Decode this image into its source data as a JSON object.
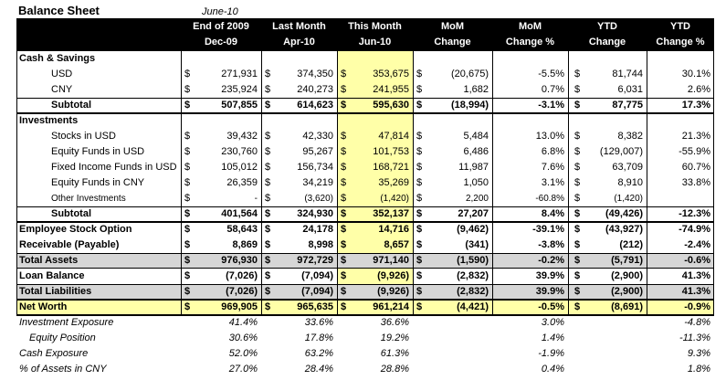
{
  "title": "Balance Sheet",
  "date": "June-10",
  "headers": [
    {
      "l1": "End of 2009",
      "l2": "Dec-09"
    },
    {
      "l1": "Last Month",
      "l2": "Apr-10"
    },
    {
      "l1": "This Month",
      "l2": "Jun-10"
    },
    {
      "l1": "MoM",
      "l2": "Change"
    },
    {
      "l1": "MoM",
      "l2": "Change %"
    },
    {
      "l1": "YTD",
      "l2": "Change"
    },
    {
      "l1": "YTD",
      "l2": "Change %"
    }
  ],
  "rows": [
    {
      "label": "Cash & Savings",
      "kind": "section"
    },
    {
      "label": "USD",
      "kind": "item",
      "v": [
        "271,931",
        "374,350",
        "353,675",
        "(20,675)",
        "-5.5%",
        "81,744",
        "30.1%"
      ],
      "d": [
        "$",
        "$",
        "$",
        "$",
        "",
        "$",
        ""
      ]
    },
    {
      "label": "CNY",
      "kind": "item",
      "v": [
        "235,924",
        "240,273",
        "241,955",
        "1,682",
        "0.7%",
        "6,031",
        "2.6%"
      ],
      "d": [
        "$",
        "$",
        "$",
        "$",
        "",
        "$",
        ""
      ]
    },
    {
      "label": "Subtotal",
      "kind": "subtotal",
      "v": [
        "507,855",
        "614,623",
        "595,630",
        "(18,994)",
        "-3.1%",
        "87,775",
        "17.3%"
      ],
      "d": [
        "$",
        "$",
        "$",
        "$",
        "",
        "$",
        ""
      ]
    },
    {
      "label": "Investments",
      "kind": "section"
    },
    {
      "label": "Stocks in USD",
      "kind": "item",
      "v": [
        "39,432",
        "42,330",
        "47,814",
        "5,484",
        "13.0%",
        "8,382",
        "21.3%"
      ],
      "d": [
        "$",
        "$",
        "$",
        "$",
        "",
        "$",
        ""
      ]
    },
    {
      "label": "Equity Funds in USD",
      "kind": "item",
      "v": [
        "230,760",
        "95,267",
        "101,753",
        "6,486",
        "6.8%",
        "(129,007)",
        "-55.9%"
      ],
      "d": [
        "$",
        "$",
        "$",
        "$",
        "",
        "$",
        ""
      ]
    },
    {
      "label": "Fixed Income Funds in USD",
      "kind": "item",
      "v": [
        "105,012",
        "156,734",
        "168,721",
        "11,987",
        "7.6%",
        "63,709",
        "60.7%"
      ],
      "d": [
        "$",
        "$",
        "$",
        "$",
        "",
        "$",
        ""
      ]
    },
    {
      "label": "Equity Funds in CNY",
      "kind": "item",
      "v": [
        "26,359",
        "34,219",
        "35,269",
        "1,050",
        "3.1%",
        "8,910",
        "33.8%"
      ],
      "d": [
        "$",
        "$",
        "$",
        "$",
        "",
        "$",
        ""
      ]
    },
    {
      "label": "Other Investments",
      "kind": "item-sm",
      "v": [
        "-",
        "(3,620)",
        "(1,420)",
        "2,200",
        "-60.8%",
        "(1,420)",
        ""
      ],
      "d": [
        "$",
        "$",
        "$",
        "$",
        "",
        "$",
        ""
      ]
    },
    {
      "label": "Subtotal",
      "kind": "subtotal",
      "v": [
        "401,564",
        "324,930",
        "352,137",
        "27,207",
        "8.4%",
        "(49,426)",
        "-12.3%"
      ],
      "d": [
        "$",
        "$",
        "$",
        "$",
        "",
        "$",
        ""
      ]
    },
    {
      "label": "Employee Stock Option",
      "kind": "main",
      "v": [
        "58,643",
        "24,178",
        "14,716",
        "(9,462)",
        "-39.1%",
        "(43,927)",
        "-74.9%"
      ],
      "d": [
        "$",
        "$",
        "$",
        "$",
        "",
        "$",
        ""
      ]
    },
    {
      "label": "Receivable (Payable)",
      "kind": "main",
      "v": [
        "8,869",
        "8,998",
        "8,657",
        "(341)",
        "-3.8%",
        "(212)",
        "-2.4%"
      ],
      "d": [
        "$",
        "$",
        "$",
        "$",
        "",
        "$",
        ""
      ]
    },
    {
      "label": "Total Assets",
      "kind": "total-grey",
      "v": [
        "976,930",
        "972,729",
        "971,140",
        "(1,590)",
        "-0.2%",
        "(5,791)",
        "-0.6%"
      ],
      "d": [
        "$",
        "$",
        "$",
        "$",
        "",
        "$",
        ""
      ]
    },
    {
      "label": "Loan Balance",
      "kind": "main",
      "v": [
        "(7,026)",
        "(7,094)",
        "(9,926)",
        "(2,832)",
        "39.9%",
        "(2,900)",
        "41.3%"
      ],
      "d": [
        "$",
        "$",
        "$",
        "$",
        "",
        "$",
        ""
      ]
    },
    {
      "label": "Total Liabilities",
      "kind": "total-grey",
      "v": [
        "(7,026)",
        "(7,094)",
        "(9,926)",
        "(2,832)",
        "39.9%",
        "(2,900)",
        "41.3%"
      ],
      "d": [
        "$",
        "$",
        "$",
        "$",
        "",
        "$",
        ""
      ]
    },
    {
      "label": "Net Worth",
      "kind": "total-yel",
      "v": [
        "969,905",
        "965,635",
        "961,214",
        "(4,421)",
        "-0.5%",
        "(8,691)",
        "-0.9%"
      ],
      "d": [
        "$",
        "$",
        "$",
        "$",
        "",
        "$",
        ""
      ]
    }
  ],
  "ratios": [
    {
      "label": "Investment Exposure",
      "indent": false,
      "v": [
        "41.4%",
        "33.6%",
        "36.6%",
        "",
        "3.0%",
        "",
        "-4.8%"
      ]
    },
    {
      "label": "Equity Position",
      "indent": true,
      "v": [
        "30.6%",
        "17.8%",
        "19.2%",
        "",
        "1.4%",
        "",
        "-11.3%"
      ]
    },
    {
      "label": "Cash Exposure",
      "indent": false,
      "v": [
        "52.0%",
        "63.2%",
        "61.3%",
        "",
        "-1.9%",
        "",
        "9.3%"
      ]
    },
    {
      "label": "% of Assets in CNY",
      "indent": false,
      "v": [
        "27.0%",
        "28.4%",
        "28.8%",
        "",
        "0.4%",
        "",
        "1.8%"
      ]
    }
  ]
}
